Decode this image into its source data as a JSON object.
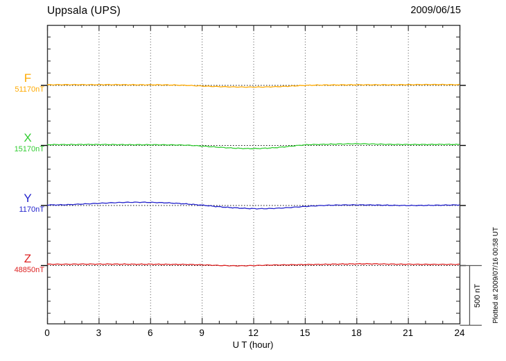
{
  "header": {
    "title": "Uppsala (UPS)",
    "date": "2009/06/15"
  },
  "chart_data": {
    "type": "line",
    "title": "Uppsala (UPS)",
    "date": "2009/06/15",
    "xlabel": "U T (hour)",
    "x_range": [
      0,
      24
    ],
    "x_major_ticks": [
      0,
      3,
      6,
      9,
      12,
      15,
      18,
      21,
      24
    ],
    "x_minor_step_hours": 1,
    "grid_hours": [
      3,
      6,
      9,
      12,
      15,
      18,
      21
    ],
    "x_hours": [
      0,
      1,
      2,
      3,
      4,
      5,
      6,
      7,
      8,
      9,
      10,
      11,
      12,
      13,
      14,
      15,
      16,
      17,
      18,
      19,
      20,
      21,
      22,
      23,
      24
    ],
    "y_scale": {
      "scale_bar_label": "500 nT",
      "scale_bar_nT": 500,
      "minor_tick_nT": 100,
      "baseline_separation_nT": 500
    },
    "footnote": "Plotted at 2009/07/16 00:58 UT",
    "series": [
      {
        "name": "F",
        "baseline_label": "51170nT",
        "baseline_nT": 51170,
        "color": "#FFAA00",
        "deviation_nT": [
          2,
          3,
          3,
          3,
          3,
          2,
          2,
          1,
          -2,
          -8,
          -13,
          -16,
          -17,
          -15,
          -10,
          -3,
          0,
          1,
          2,
          2,
          2,
          3,
          4,
          4,
          3
        ]
      },
      {
        "name": "X",
        "baseline_label": "15170nT",
        "baseline_nT": 15170,
        "color": "#32CD32",
        "deviation_nT": [
          4,
          4,
          5,
          5,
          4,
          3,
          3,
          2,
          0,
          -8,
          -18,
          -26,
          -29,
          -24,
          -12,
          2,
          6,
          9,
          11,
          9,
          6,
          5,
          5,
          6,
          5
        ]
      },
      {
        "name": "Y",
        "baseline_label": "1170nT",
        "baseline_nT": 1170,
        "color": "#2222CC",
        "deviation_nT": [
          2,
          3,
          9,
          15,
          21,
          24,
          23,
          19,
          11,
          0,
          -13,
          -23,
          -29,
          -28,
          -21,
          -11,
          -3,
          1,
          2,
          1,
          -1,
          -3,
          -2,
          0,
          2
        ]
      },
      {
        "name": "Z",
        "baseline_label": "48850nT",
        "baseline_nT": 48850,
        "color": "#DD2222",
        "deviation_nT": [
          8,
          8,
          9,
          9,
          9,
          8,
          8,
          7,
          6,
          3,
          -2,
          -5,
          -3,
          1,
          3,
          5,
          7,
          9,
          11,
          11,
          9,
          8,
          7,
          7,
          7
        ]
      }
    ]
  }
}
